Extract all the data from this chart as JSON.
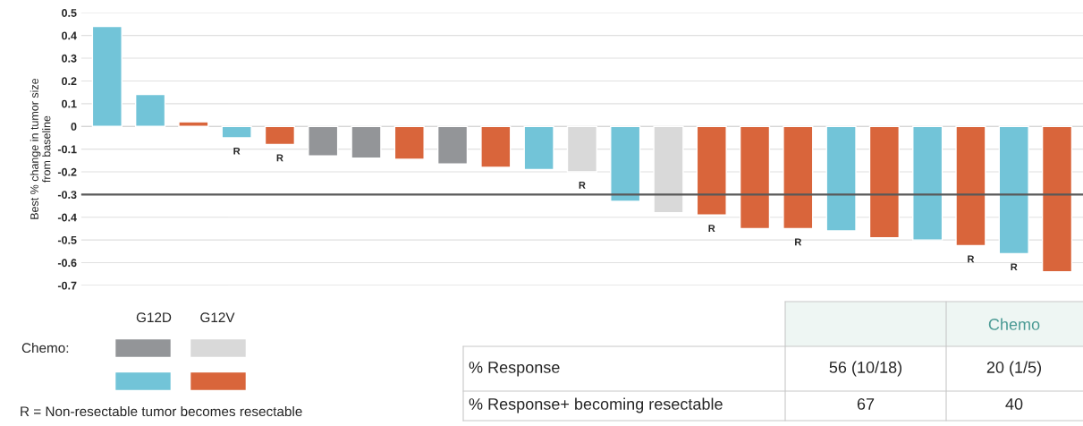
{
  "chart_data": {
    "type": "bar",
    "ylabel": "Best % change in tumor size\nfrom baseline",
    "categories": [
      null,
      null,
      null,
      null,
      null,
      null,
      null,
      null,
      null,
      null,
      null,
      null,
      null,
      null,
      null,
      null,
      null,
      null,
      null,
      null,
      null,
      null,
      null
    ],
    "series": [
      {
        "color": "#939598",
        "values": [
          null,
          null,
          null,
          null,
          null,
          -0.13,
          -0.14,
          null,
          -0.165,
          null,
          null,
          null,
          null,
          null,
          null,
          null,
          null,
          null,
          null,
          null,
          null,
          null,
          null
        ],
        "value_labels": [
          null,
          null,
          null,
          null,
          null,
          null,
          null,
          null,
          null,
          null,
          null,
          null,
          null,
          null,
          null,
          null,
          null,
          null,
          null,
          null,
          null,
          null,
          null
        ]
      },
      {
        "color": "#d9d9d9",
        "values": [
          null,
          null,
          null,
          null,
          null,
          null,
          null,
          null,
          null,
          null,
          null,
          -0.2,
          null,
          -0.38,
          null,
          null,
          null,
          null,
          null,
          null,
          null,
          null,
          null
        ],
        "value_labels": [
          null,
          null,
          null,
          null,
          null,
          null,
          null,
          null,
          null,
          null,
          null,
          "R",
          null,
          null,
          null,
          null,
          null,
          null,
          null,
          null,
          null,
          null,
          null
        ]
      },
      {
        "color": "#72c4d8",
        "values": [
          0.44,
          0.14,
          null,
          -0.05,
          null,
          null,
          null,
          null,
          null,
          null,
          -0.19,
          null,
          -0.33,
          null,
          null,
          null,
          null,
          -0.46,
          null,
          -0.5,
          null,
          -0.56,
          null
        ],
        "value_labels": [
          null,
          null,
          null,
          "R",
          null,
          null,
          null,
          null,
          null,
          null,
          null,
          null,
          null,
          null,
          null,
          null,
          null,
          null,
          null,
          null,
          null,
          "R",
          null
        ]
      },
      {
        "color": "#d9653b",
        "values": [
          null,
          null,
          0.02,
          null,
          -0.08,
          null,
          null,
          -0.145,
          null,
          -0.18,
          null,
          null,
          null,
          null,
          -0.39,
          -0.45,
          -0.45,
          null,
          -0.49,
          null,
          -0.525,
          null,
          -0.64
        ],
        "value_labels": [
          null,
          null,
          null,
          null,
          "R",
          null,
          null,
          null,
          null,
          null,
          null,
          null,
          null,
          null,
          "R",
          null,
          "R",
          null,
          null,
          null,
          "R",
          null,
          null
        ]
      }
    ],
    "ylim": [
      -0.7,
      0.5
    ],
    "yticks": [
      -0.7,
      -0.6,
      -0.5,
      -0.4,
      -0.3,
      -0.2,
      -0.1,
      0,
      0.1,
      0.2,
      0.3,
      0.4,
      0.5
    ],
    "grid": "y",
    "ref_lines": [
      {
        "axis": "y",
        "value": -0.3,
        "color": "#595959"
      }
    ],
    "annotations": [
      "G12D",
      "G12V",
      "Chemo:",
      "R = Non-resectable tumor becomes resectable",
      "Chemo",
      "% Response",
      "56 (10/18)",
      "20 (1/5)",
      "% Response+ becoming resectable",
      "67",
      "40"
    ]
  }
}
